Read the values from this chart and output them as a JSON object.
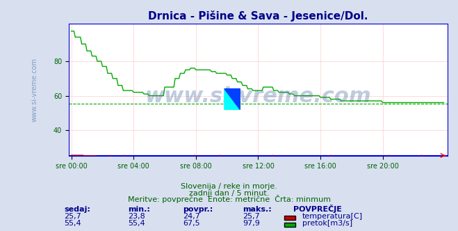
{
  "title": "Drnica - Pišine & Sava - Jesenice/Dol.",
  "title_color": "#00008B",
  "bg_color": "#d8e0f0",
  "plot_bg_color": "#ffffff",
  "grid_color_h": "#ffcccc",
  "grid_color_v": "#ffcccc",
  "xlabel_color": "#006000",
  "xtick_labels": [
    "sre 00:00",
    "sre 04:00",
    "sre 08:00",
    "sre 12:00",
    "sre 16:00",
    "sre 20:00"
  ],
  "xtick_positions": [
    0,
    48,
    96,
    144,
    192,
    240
  ],
  "ylim": [
    25,
    102
  ],
  "yticks": [
    40,
    60,
    80
  ],
  "ylabel_color": "#006000",
  "line1_color": "#cc0000",
  "line2_color": "#00aa00",
  "dashed_line_y": 55.4,
  "dashed_line_color": "#00aa00",
  "total_points": 288,
  "watermark": "www.si-vreme.com",
  "watermark_color": "#4a6fa5",
  "subtitle1": "Slovenija / reke in morje.",
  "subtitle2": "zadnji dan / 5 minut.",
  "subtitle3": "Meritve: povprečne  Enote: metrične  Črta: minmum",
  "subtitle_color": "#006000",
  "legend_title": "POVPREČJE",
  "legend_color": "#00008B",
  "stats_labels": [
    "sedaj:",
    "min.:",
    "povpr.:",
    "maks.:"
  ],
  "stats_color": "#00008B",
  "temp_values": [
    25.7,
    23.8,
    24.7,
    25.7
  ],
  "flow_values": [
    55.4,
    55.4,
    67.5,
    97.9
  ],
  "temp_label": "temperatura[C]",
  "flow_label": "pretok[m3/s]",
  "ylabel_text": "www.si-vreme.com",
  "temp_min": 23.8,
  "temp_max": 25.7,
  "flow_min": 55.4,
  "flow_max": 97.9,
  "axis_color": "#0000cc"
}
